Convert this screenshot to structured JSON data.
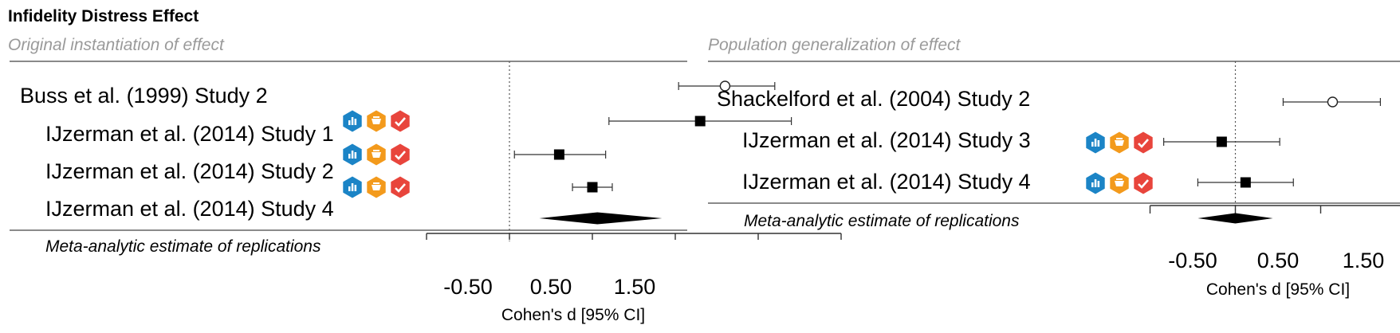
{
  "chart_data": {
    "type": "forest",
    "title": "Infidelity Distress Effect",
    "badge_colors": {
      "blue": "#1b84c6",
      "orange": "#f39a1c",
      "red": "#e8453c"
    },
    "badge_icons": [
      "bar-chart-icon",
      "graduation-cap-icon",
      "checkmark-icon"
    ],
    "panels": [
      {
        "subtitle": "Original instantiation of effect",
        "original": {
          "label": "Buss et al. (1999) Study 2",
          "estimate": 1.3,
          "ci": [
            1.02,
            1.6
          ]
        },
        "replications": [
          {
            "label": "IJzerman et al. (2014) Study 1",
            "estimate": 1.15,
            "ci": [
              0.6,
              1.7
            ]
          },
          {
            "label": "IJzerman et al. (2014) Study 2",
            "estimate": 0.3,
            "ci": [
              0.03,
              0.58
            ]
          },
          {
            "label": "IJzerman et al. (2014) Study 4",
            "estimate": 0.5,
            "ci": [
              0.38,
              0.62
            ]
          }
        ],
        "meta": {
          "label": "Meta-analytic estimate of replications",
          "estimate": 0.53,
          "ci": [
            0.18,
            0.92
          ]
        },
        "xlabel": "Cohen's d [95% CI]",
        "xticks": [
          -0.5,
          0,
          0.5,
          1,
          1.5,
          2
        ],
        "xtick_labels": [
          "-0.50",
          "0.50",
          "1.50"
        ],
        "xtick_label_values": [
          -0.5,
          0.5,
          1.5
        ],
        "xlim": [
          -0.5,
          2.0
        ],
        "reference_line": 0
      },
      {
        "subtitle": "Population generalization of effect",
        "original": {
          "label": "Shackelford et al. (2004) Study 2",
          "estimate": 0.57,
          "ci": [
            0.28,
            0.85
          ]
        },
        "replications": [
          {
            "label": "IJzerman et al. (2014) Study 3",
            "estimate": -0.08,
            "ci": [
              -0.42,
              0.26
            ]
          },
          {
            "label": "IJzerman et al. (2014) Study 4",
            "estimate": 0.06,
            "ci": [
              -0.22,
              0.34
            ]
          }
        ],
        "meta": {
          "label": "Meta-analytic estimate of replications",
          "estimate": 0.0,
          "ci": [
            -0.22,
            0.22
          ]
        },
        "xlabel": "Cohen's d [95% CI]",
        "xticks": [
          -0.5,
          0,
          0.5,
          1,
          1.5
        ],
        "xtick_labels": [
          "-0.50",
          "0.50",
          "1.50"
        ],
        "xtick_label_values": [
          -0.5,
          0.5,
          1.5
        ],
        "xlim": [
          -0.5,
          1.5
        ],
        "reference_line": 0
      }
    ]
  }
}
